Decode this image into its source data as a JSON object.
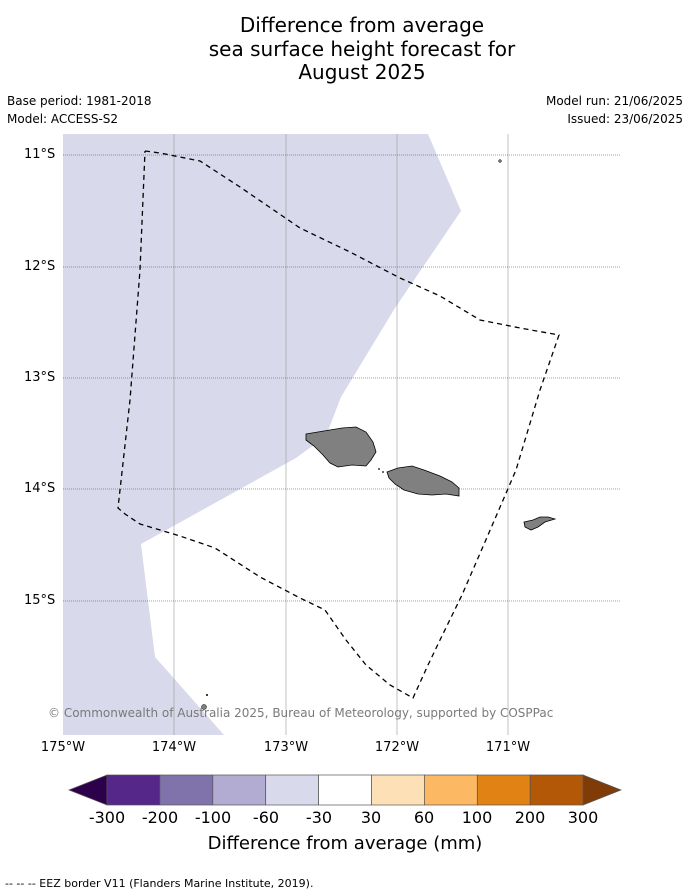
{
  "title_lines": [
    "Difference from average",
    "sea surface height forecast for",
    "August 2025"
  ],
  "meta": {
    "base_period": "Base period: 1981-2018",
    "model": "Model: ACCESS-S2",
    "model_run": "Model run: 21/06/2025",
    "issued": "Issued: 23/06/2025"
  },
  "map": {
    "lat_ticks": [
      "11°S",
      "12°S",
      "13°S",
      "14°S",
      "15°S"
    ],
    "lon_ticks": [
      "175°W",
      "174°W",
      "173°W",
      "172°W",
      "171°W"
    ],
    "lon_range": [
      -175,
      -170
    ],
    "lat_range": [
      -16.2,
      -10.8
    ],
    "anomaly_zone_color": "#d8d9ea",
    "land_color": "#808080",
    "eez_border_style": "dashed"
  },
  "copyright": "© Commonwealth of Australia 2025, Bureau of Meteorology, supported by COSPPac",
  "colorbar": {
    "label": "Difference from average (mm)",
    "ticks": [
      "-300",
      "-200",
      "-100",
      "-60",
      "-30",
      "30",
      "60",
      "100",
      "200",
      "300"
    ],
    "colors": [
      "#2d004b",
      "#542788",
      "#8073ac",
      "#b2abd2",
      "#d8daeb",
      "#ffffff",
      "#fee0b6",
      "#fdb863",
      "#e08214",
      "#b35806",
      "#7f3b08"
    ]
  },
  "footnote": "--  --  -- EEZ border V11 (Flanders Marine Institute, 2019)."
}
